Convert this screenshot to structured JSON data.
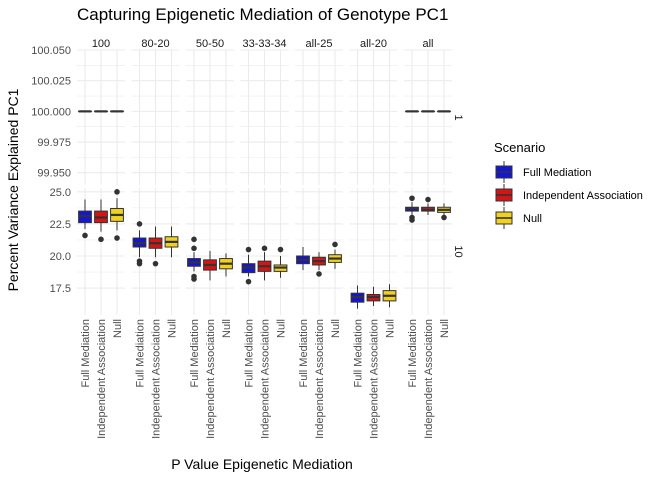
{
  "chart_data": {
    "type": "box",
    "title": "Capturing Epigenetic Mediation of Genotype PC1",
    "xlabel": "P Value Epigenetic Mediation",
    "ylabel": "Percent Variance Explained PC1",
    "legend": {
      "title": "Scenario",
      "placement": "right",
      "entries": [
        "Full Mediation",
        "Independent Association",
        "Null"
      ]
    },
    "colors": {
      "Full Mediation": "#1515d6",
      "Independent Association": "#d41515",
      "Null": "#f0d21e",
      "panel_grid": "#ebebeb",
      "text": "#4d4d4d"
    },
    "facet_columns": [
      "100",
      "80-20",
      "50-50",
      "33-33-34",
      "all-25",
      "all-20",
      "all"
    ],
    "facet_rows": [
      {
        "label": "1",
        "ylim": [
          99.94,
          100.05
        ],
        "yticks": [
          "99.950",
          "99.975",
          "100.000",
          "100.025",
          "100.050"
        ]
      },
      {
        "label": "10",
        "ylim": [
          15.4,
          25.3
        ],
        "yticks": [
          "17.5",
          "20.0",
          "22.5",
          "25.0"
        ]
      }
    ],
    "x_tick_labels": [
      "Full Mediation",
      "Independent Association",
      "Null"
    ],
    "grid": true,
    "boxes": {
      "1": {
        "100": [
          {
            "group": "Full Mediation",
            "min": 100,
            "q1": 100,
            "median": 100,
            "q3": 100,
            "max": 100,
            "outliers": []
          },
          {
            "group": "Independent Association",
            "min": 100,
            "q1": 100,
            "median": 100,
            "q3": 100,
            "max": 100,
            "outliers": []
          },
          {
            "group": "Null",
            "min": 100,
            "q1": 100,
            "median": 100,
            "q3": 100,
            "max": 100,
            "outliers": []
          }
        ],
        "all": [
          {
            "group": "Full Mediation",
            "min": 100,
            "q1": 100,
            "median": 100,
            "q3": 100,
            "max": 100,
            "outliers": []
          },
          {
            "group": "Independent Association",
            "min": 100,
            "q1": 100,
            "median": 100,
            "q3": 100,
            "max": 100,
            "outliers": []
          },
          {
            "group": "Null",
            "min": 100,
            "q1": 100,
            "median": 100,
            "q3": 100,
            "max": 100,
            "outliers": []
          }
        ]
      },
      "10": {
        "100": [
          {
            "group": "Full Mediation",
            "min": 22.1,
            "q1": 22.6,
            "median": 23.1,
            "q3": 23.5,
            "max": 24.4,
            "outliers": [
              21.6
            ]
          },
          {
            "group": "Independent Association",
            "min": 21.9,
            "q1": 22.6,
            "median": 23.0,
            "q3": 23.5,
            "max": 24.4,
            "outliers": [
              21.3
            ]
          },
          {
            "group": "Null",
            "min": 22.0,
            "q1": 22.7,
            "median": 23.2,
            "q3": 23.7,
            "max": 24.5,
            "outliers": [
              25.0,
              21.4
            ]
          }
        ],
        "80-20": [
          {
            "group": "Full Mediation",
            "min": 19.9,
            "q1": 20.7,
            "median": 21.0,
            "q3": 21.4,
            "max": 22.0,
            "outliers": [
              22.5,
              19.6,
              19.4
            ]
          },
          {
            "group": "Independent Association",
            "min": 19.9,
            "q1": 20.6,
            "median": 21.0,
            "q3": 21.4,
            "max": 22.3,
            "outliers": [
              19.4
            ]
          },
          {
            "group": "Null",
            "min": 19.9,
            "q1": 20.7,
            "median": 21.1,
            "q3": 21.5,
            "max": 22.3,
            "outliers": []
          }
        ],
        "50-50": [
          {
            "group": "Full Mediation",
            "min": 18.8,
            "q1": 19.2,
            "median": 19.5,
            "q3": 19.8,
            "max": 20.3,
            "outliers": [
              21.3,
              20.6,
              18.4,
              18.2
            ]
          },
          {
            "group": "Independent Association",
            "min": 18.1,
            "q1": 18.9,
            "median": 19.3,
            "q3": 19.7,
            "max": 20.4,
            "outliers": []
          },
          {
            "group": "Null",
            "min": 18.4,
            "q1": 19.0,
            "median": 19.4,
            "q3": 19.8,
            "max": 20.2,
            "outliers": []
          }
        ],
        "33-33-34": [
          {
            "group": "Full Mediation",
            "min": 18.4,
            "q1": 18.7,
            "median": 19.1,
            "q3": 19.4,
            "max": 20.1,
            "outliers": [
              20.5,
              18.0
            ]
          },
          {
            "group": "Independent Association",
            "min": 18.1,
            "q1": 18.8,
            "median": 19.2,
            "q3": 19.6,
            "max": 20.3,
            "outliers": [
              20.6
            ]
          },
          {
            "group": "Null",
            "min": 18.3,
            "q1": 18.8,
            "median": 19.1,
            "q3": 19.3,
            "max": 20.0,
            "outliers": [
              20.5
            ]
          }
        ],
        "all-25": [
          {
            "group": "Full Mediation",
            "min": 18.9,
            "q1": 19.4,
            "median": 19.7,
            "q3": 20.0,
            "max": 20.7,
            "outliers": []
          },
          {
            "group": "Independent Association",
            "min": 18.9,
            "q1": 19.3,
            "median": 19.6,
            "q3": 19.9,
            "max": 20.3,
            "outliers": [
              18.6
            ]
          },
          {
            "group": "Null",
            "min": 19.0,
            "q1": 19.5,
            "median": 19.8,
            "q3": 20.1,
            "max": 20.5,
            "outliers": [
              20.9
            ]
          }
        ],
        "all-20": [
          {
            "group": "Full Mediation",
            "min": 15.9,
            "q1": 16.4,
            "median": 16.8,
            "q3": 17.1,
            "max": 17.7,
            "outliers": []
          },
          {
            "group": "Independent Association",
            "min": 16.1,
            "q1": 16.5,
            "median": 16.8,
            "q3": 17.0,
            "max": 17.6,
            "outliers": []
          },
          {
            "group": "Null",
            "min": 16.0,
            "q1": 16.5,
            "median": 16.9,
            "q3": 17.3,
            "max": 17.8,
            "outliers": []
          }
        ],
        "all": [
          {
            "group": "Full Mediation",
            "min": 23.1,
            "q1": 23.5,
            "median": 23.7,
            "q3": 23.8,
            "max": 24.2,
            "outliers": [
              24.5,
              23.0,
              22.8
            ]
          },
          {
            "group": "Independent Association",
            "min": 23.2,
            "q1": 23.5,
            "median": 23.6,
            "q3": 23.8,
            "max": 24.1,
            "outliers": [
              24.4
            ]
          },
          {
            "group": "Null",
            "min": 23.2,
            "q1": 23.4,
            "median": 23.6,
            "q3": 23.8,
            "max": 24.1,
            "outliers": [
              23.0
            ]
          }
        ]
      }
    }
  }
}
